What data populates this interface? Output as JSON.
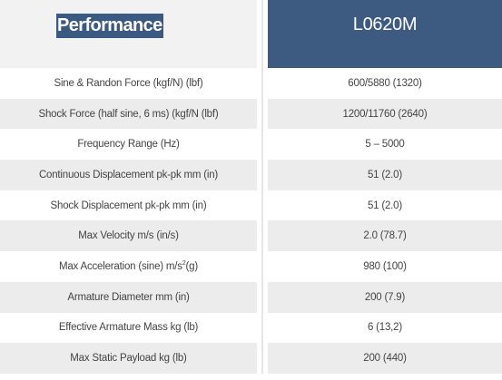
{
  "header": {
    "left": "Performance",
    "right": "L0620M"
  },
  "rows": [
    {
      "label": "Sine & Randon Force (kgf/N) (lbf)",
      "value": "600/5880 (1320)"
    },
    {
      "label": "Shock Force (half sine, 6 ms) (kgf/N (lbf)",
      "value": "1200/11760 (2640)"
    },
    {
      "label": "Frequency Range (Hz)",
      "value": "5 – 5000"
    },
    {
      "label": "Continuous Displacement pk-pk mm (in)",
      "value": "51 (2.0)"
    },
    {
      "label": "Shock Displacement pk-pk mm (in)",
      "value": "51 (2.0)"
    },
    {
      "label": "Max Velocity m/s (in/s)",
      "value": "2.0 (78.7)"
    },
    {
      "label_pre": "Max Acceleration (sine) m/s",
      "label_sup": "2",
      "label_post": " (g)",
      "value": "980 (100)"
    },
    {
      "label": "Armature Diameter mm (in)",
      "value": "200 (7.9)"
    },
    {
      "label": "Effective Armature Mass kg (lb)",
      "value": "6 (13,2)"
    },
    {
      "label": "Max Static Payload kg (lb)",
      "value": "200 (440)"
    }
  ]
}
